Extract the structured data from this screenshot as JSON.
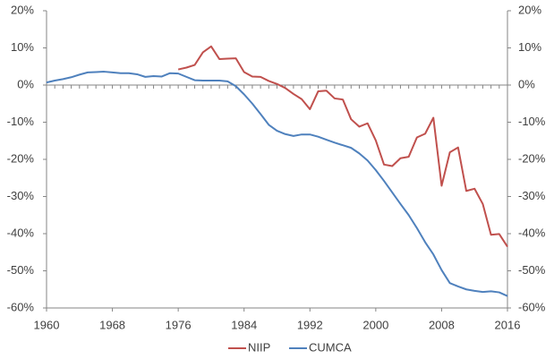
{
  "chart_data": {
    "type": "line",
    "x": [
      1960,
      1961,
      1962,
      1963,
      1964,
      1965,
      1966,
      1967,
      1968,
      1969,
      1970,
      1971,
      1972,
      1973,
      1974,
      1975,
      1976,
      1977,
      1978,
      1979,
      1980,
      1981,
      1982,
      1983,
      1984,
      1985,
      1986,
      1987,
      1988,
      1989,
      1990,
      1991,
      1992,
      1993,
      1994,
      1995,
      1996,
      1997,
      1998,
      1999,
      2000,
      2001,
      2002,
      2003,
      2004,
      2005,
      2006,
      2007,
      2008,
      2009,
      2010,
      2011,
      2012,
      2013,
      2014,
      2015,
      2016
    ],
    "series": [
      {
        "name": "NIIP",
        "color": "#c0504d",
        "values": [
          null,
          null,
          null,
          null,
          null,
          null,
          null,
          null,
          null,
          null,
          null,
          null,
          null,
          null,
          null,
          null,
          4.2,
          4.7,
          5.4,
          8.8,
          10.4,
          7.0,
          7.1,
          7.2,
          3.5,
          2.3,
          2.2,
          1.1,
          0.3,
          -0.8,
          -2.4,
          -3.8,
          -6.5,
          -1.7,
          -1.5,
          -3.6,
          -3.9,
          -9.2,
          -11.2,
          -10.3,
          -14.9,
          -21.4,
          -21.8,
          -19.7,
          -19.3,
          -14.1,
          -13.1,
          -8.8,
          -27.1,
          -18.1,
          -16.8,
          -28.5,
          -27.9,
          -32.0,
          -40.3,
          -40.1,
          -43.5
        ]
      },
      {
        "name": "CUMCA",
        "color": "#4f81bd",
        "values": [
          0.7,
          1.2,
          1.6,
          2.1,
          2.8,
          3.4,
          3.5,
          3.6,
          3.4,
          3.2,
          3.2,
          2.9,
          2.2,
          2.4,
          2.3,
          3.2,
          3.1,
          2.2,
          1.3,
          1.2,
          1.2,
          1.2,
          1.0,
          -0.3,
          -2.5,
          -5.0,
          -7.8,
          -10.7,
          -12.3,
          -13.2,
          -13.7,
          -13.3,
          -13.3,
          -13.9,
          -14.7,
          -15.5,
          -16.2,
          -16.9,
          -18.4,
          -20.3,
          -22.9,
          -25.8,
          -28.9,
          -32.0,
          -35.0,
          -38.5,
          -42.3,
          -45.6,
          -49.8,
          -53.3,
          -54.2,
          -55.0,
          -55.4,
          -55.7,
          -55.5,
          -55.8,
          -56.8
        ]
      }
    ],
    "xlim": [
      1960,
      2016
    ],
    "xticks": [
      1960,
      1968,
      1976,
      1984,
      1992,
      2000,
      2008,
      2016
    ],
    "ylim": [
      -60,
      20
    ],
    "yticks": [
      {
        "value": -60,
        "label": "-60%"
      },
      {
        "value": -50,
        "label": "-50%"
      },
      {
        "value": -40,
        "label": "-40%"
      },
      {
        "value": -30,
        "label": "-30%"
      },
      {
        "value": -20,
        "label": "-20%"
      },
      {
        "value": -10,
        "label": "-10%"
      },
      {
        "value": 0,
        "label": "0%"
      },
      {
        "value": 10,
        "label": "10%"
      },
      {
        "value": 20,
        "label": "20%"
      }
    ],
    "y2lim": [
      -60,
      20
    ],
    "y2ticks": [
      {
        "value": -60,
        "label": "-60%"
      },
      {
        "value": -50,
        "label": "-50%"
      },
      {
        "value": -40,
        "label": "-40%"
      },
      {
        "value": -30,
        "label": "-30%"
      },
      {
        "value": -20,
        "label": "-20%"
      },
      {
        "value": -10,
        "label": "-10%"
      },
      {
        "value": 0,
        "label": "0%"
      },
      {
        "value": 10,
        "label": "10%"
      },
      {
        "value": 20,
        "label": "20%"
      }
    ],
    "legend": "bottom"
  }
}
